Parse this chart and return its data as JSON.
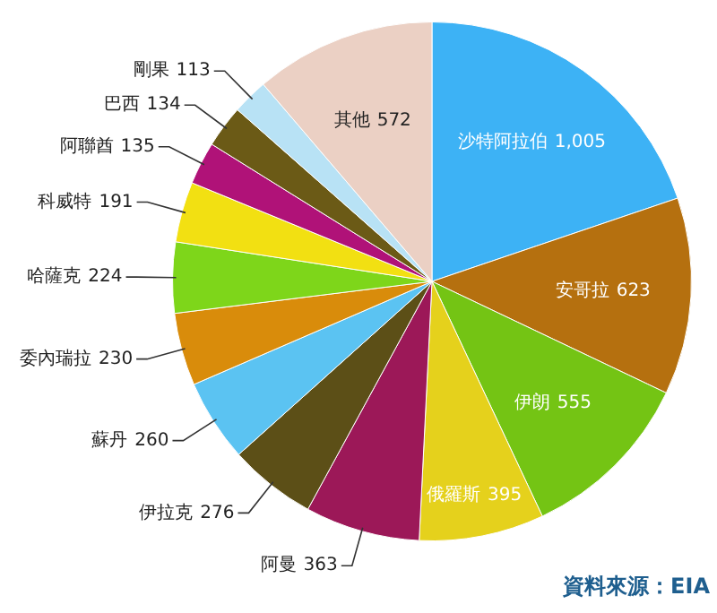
{
  "chart_data": {
    "type": "pie",
    "categories": [
      "沙特阿拉伯",
      "安哥拉",
      "伊朗",
      "俄羅斯",
      "阿曼",
      "伊拉克",
      "蘇丹",
      "委內瑞拉",
      "哈薩克",
      "科威特",
      "阿聯酋",
      "巴西",
      "剛果",
      "其他"
    ],
    "values": [
      1005,
      623,
      555,
      395,
      363,
      276,
      260,
      230,
      224,
      191,
      135,
      134,
      113,
      572
    ],
    "colors": [
      "#3db2f5",
      "#b5700f",
      "#74c414",
      "#e5d11c",
      "#9c1858",
      "#5c4f17",
      "#5bc3f2",
      "#d98c0b",
      "#7ed61a",
      "#f2e012",
      "#b01278",
      "#6b5a16",
      "#b8e2f5",
      "#ebd0c4"
    ],
    "value_labels": [
      "1,005",
      "623",
      "555",
      "395",
      "363",
      "276",
      "260",
      "230",
      "224",
      "191",
      "135",
      "134",
      "113",
      "572"
    ],
    "legend": false,
    "annotations": [
      "資料來源：EIA"
    ]
  }
}
